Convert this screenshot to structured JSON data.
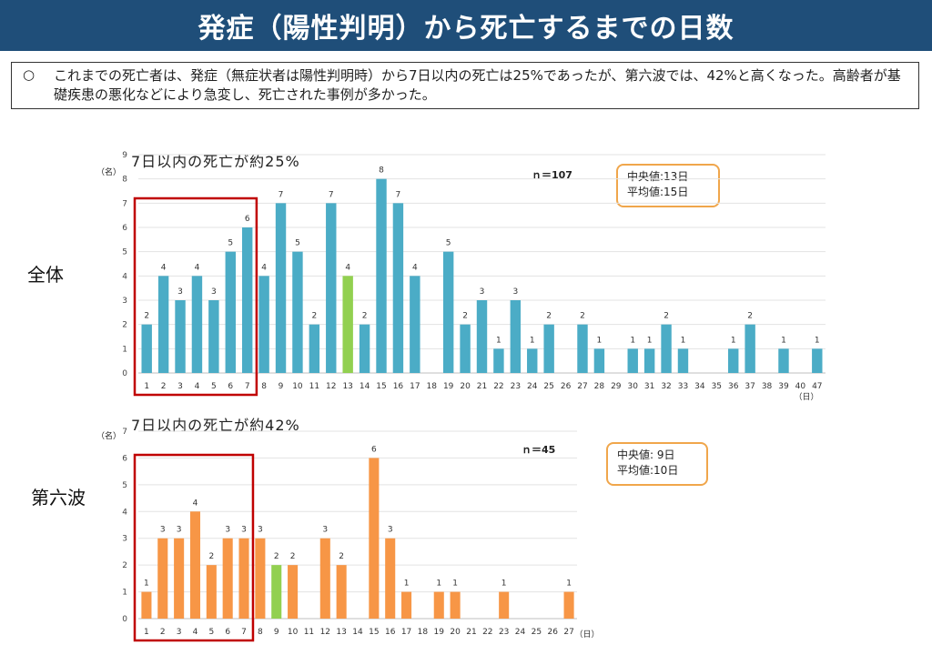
{
  "header": {
    "title": "発症（陽性判明）から死亡するまでの日数"
  },
  "note": {
    "bullet": "○",
    "text": "これまでの死亡者は、発症（無症状者は陽性判明時）から7日以内の死亡は25%であったが、第六波では、42%と高くなった。高齢者が基礎疾患の悪化などにより急変し、死亡された事例が多かった。"
  },
  "chart_data": [
    {
      "type": "bar",
      "title": "7日以内の死亡が約25%",
      "side_label": "全体",
      "ylabel": "（名）",
      "xlabel": "（日）",
      "n_label": "ｎ＝107",
      "stats": [
        "中央値:13日",
        "平均値:15日"
      ],
      "ylim": [
        0,
        9
      ],
      "grid": true,
      "bar_color": "#4bacc6",
      "highlight_color": "#92d050",
      "highlight_category": "13",
      "box_color": "#c00000",
      "box_range": [
        "1",
        "7"
      ],
      "categories": [
        "1",
        "2",
        "3",
        "4",
        "5",
        "6",
        "7",
        "8",
        "9",
        "10",
        "11",
        "12",
        "13",
        "14",
        "15",
        "16",
        "17",
        "18",
        "19",
        "20",
        "21",
        "22",
        "23",
        "24",
        "25",
        "26",
        "27",
        "28",
        "29",
        "30",
        "31",
        "32",
        "33",
        "34",
        "35",
        "36",
        "37",
        "38",
        "39",
        "40",
        "47"
      ],
      "values": [
        2,
        4,
        3,
        4,
        3,
        5,
        6,
        4,
        7,
        5,
        2,
        7,
        4,
        2,
        8,
        7,
        4,
        0,
        5,
        2,
        3,
        1,
        3,
        1,
        2,
        0,
        2,
        1,
        0,
        1,
        1,
        2,
        1,
        0,
        0,
        1,
        2,
        0,
        1,
        0,
        1
      ]
    },
    {
      "type": "bar",
      "title": "7日以内の死亡が約42%",
      "side_label": "第六波",
      "ylabel": "（名）",
      "xlabel": "（日）",
      "n_label": "ｎ＝45",
      "stats": [
        "中央値:  9日",
        "平均値:10日"
      ],
      "ylim": [
        0,
        7
      ],
      "grid": true,
      "bar_color": "#f79646",
      "highlight_color": "#92d050",
      "highlight_category": "9",
      "box_color": "#c00000",
      "box_range": [
        "1",
        "7"
      ],
      "categories": [
        "1",
        "2",
        "3",
        "4",
        "5",
        "6",
        "7",
        "8",
        "9",
        "10",
        "11",
        "12",
        "13",
        "14",
        "15",
        "16",
        "17",
        "18",
        "19",
        "20",
        "21",
        "22",
        "23",
        "24",
        "25",
        "26",
        "27"
      ],
      "values": [
        1,
        3,
        3,
        4,
        2,
        3,
        3,
        3,
        2,
        2,
        0,
        3,
        2,
        0,
        6,
        3,
        1,
        0,
        1,
        1,
        0,
        0,
        1,
        0,
        0,
        0,
        1
      ]
    }
  ]
}
